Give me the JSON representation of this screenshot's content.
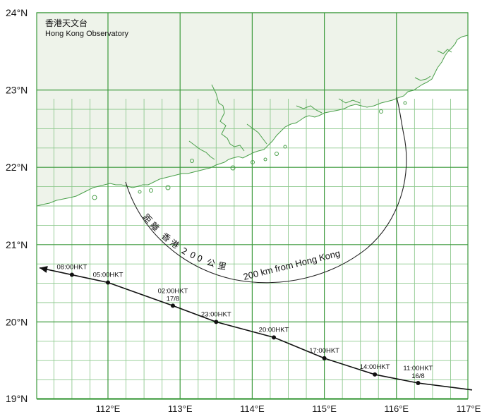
{
  "credit": {
    "chinese": "香港天文台",
    "english": "Hong Kong Observatory"
  },
  "range_label": {
    "chinese": [
      "距",
      "離",
      "香",
      "港",
      "2",
      "0",
      "0",
      "公",
      "里"
    ],
    "english": "200 km from Hong Kong"
  },
  "latitude_labels": [
    "24°N",
    "23°N",
    "22°N",
    "21°N",
    "20°N",
    "19°N"
  ],
  "longitude_labels": [
    "112°E",
    "113°E",
    "114°E",
    "115°E",
    "116°E",
    "117°E"
  ],
  "track": {
    "points": [
      {
        "lon": 117.2,
        "lat": 19.12,
        "label": ""
      },
      {
        "lon": 116.3,
        "lat": 19.21,
        "label": "11:00HKT",
        "date": "16/8"
      },
      {
        "lon": 115.7,
        "lat": 19.32,
        "label": "14:00HKT"
      },
      {
        "lon": 115.0,
        "lat": 19.53,
        "label": "17:00HKT"
      },
      {
        "lon": 114.3,
        "lat": 19.8,
        "label": "20:00HKT"
      },
      {
        "lon": 113.5,
        "lat": 20.0,
        "label": "23:00HKT"
      },
      {
        "lon": 112.9,
        "lat": 20.21,
        "label": "02:00HKT",
        "date": "17/8"
      },
      {
        "lon": 112.0,
        "lat": 20.51,
        "label": "05:00HKT"
      },
      {
        "lon": 111.5,
        "lat": 20.61,
        "label": "08:00HKT"
      },
      {
        "lon": 111.0,
        "lat": 20.7,
        "label": ""
      }
    ]
  },
  "colors": {
    "land": "#eef3ea",
    "sea": "#ffffff",
    "grid_major": "#3c9a3c",
    "grid_minor": "#8fc98f",
    "coast": "#4aa04a",
    "track": "#111111",
    "range_ring": "#222222"
  }
}
